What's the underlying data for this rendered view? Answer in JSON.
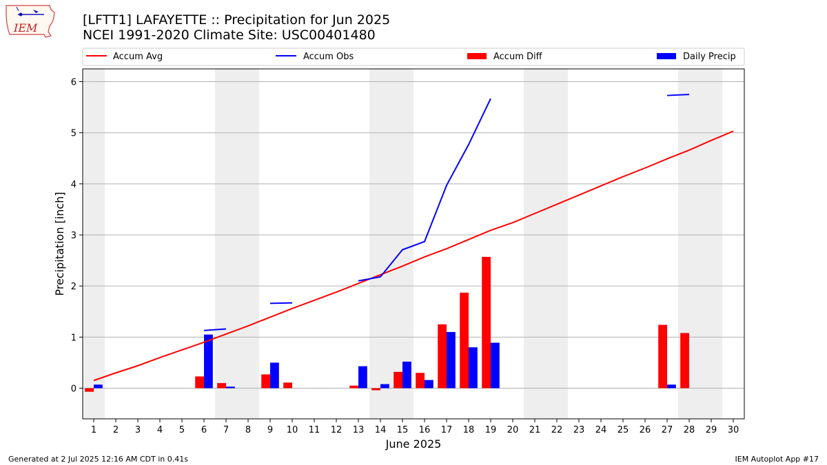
{
  "header": {
    "title_line1": "[LFTT1] LAFAYETTE :: Precipitation for Jun 2025",
    "title_line2": "NCEI 1991-2020 Climate Site: USC00401480",
    "logo_text": "IEM"
  },
  "footer": {
    "left": "Generated at 2 Jul 2025 12:16 AM CDT in 0.41s",
    "right": "IEM Autoplot App #17"
  },
  "colors": {
    "avg": "#ff0000",
    "obs": "#0000ff",
    "diff": "#ff0000",
    "daily": "#0000ff",
    "weekend": "#eeeeee",
    "grid": "#b0b0b0"
  },
  "chart_data": {
    "type": "bar",
    "title": "[LFTT1] LAFAYETTE :: Precipitation for Jun 2025",
    "subtitle": "NCEI 1991-2020 Climate Site: USC00401480",
    "xlabel": "June 2025",
    "ylabel": "Precipitation [inch]",
    "xlim": [
      0.5,
      30.5
    ],
    "ylim": [
      -0.6,
      6.25
    ],
    "yticks": [
      0,
      1,
      2,
      3,
      4,
      5,
      6
    ],
    "xticks": [
      1,
      2,
      3,
      4,
      5,
      6,
      7,
      8,
      9,
      10,
      11,
      12,
      13,
      14,
      15,
      16,
      17,
      18,
      19,
      20,
      21,
      22,
      23,
      24,
      25,
      26,
      27,
      28,
      29,
      30
    ],
    "grid": "horizontal",
    "shaded_days": [
      1,
      7,
      8,
      14,
      15,
      21,
      22,
      28,
      29
    ],
    "legend": {
      "placement": "top",
      "entries": [
        {
          "label": "Accum Avg",
          "kind": "line",
          "color": "#ff0000"
        },
        {
          "label": "Accum Obs",
          "kind": "line",
          "color": "#0000ff"
        },
        {
          "label": "Accum Diff",
          "kind": "bar",
          "color": "#ff0000"
        },
        {
          "label": "Daily Precip",
          "kind": "bar",
          "color": "#0000ff"
        }
      ]
    },
    "series": [
      {
        "name": "Accum Avg",
        "kind": "line",
        "color": "#ff0000",
        "x": [
          1,
          2,
          3,
          4,
          5,
          6,
          7,
          8,
          9,
          10,
          11,
          12,
          13,
          14,
          15,
          16,
          17,
          18,
          19,
          20,
          21,
          22,
          23,
          24,
          25,
          26,
          27,
          28,
          29,
          30
        ],
        "values": [
          0.15,
          0.3,
          0.44,
          0.6,
          0.75,
          0.9,
          1.06,
          1.22,
          1.39,
          1.56,
          1.72,
          1.88,
          2.05,
          2.22,
          2.39,
          2.57,
          2.73,
          2.91,
          3.09,
          3.24,
          3.42,
          3.6,
          3.78,
          3.96,
          4.14,
          4.31,
          4.49,
          4.66,
          4.85,
          5.03
        ]
      },
      {
        "name": "Accum Obs",
        "kind": "line",
        "color": "#0000ff",
        "segments": [
          {
            "x": [
              6,
              7
            ],
            "values": [
              1.13,
              1.16
            ]
          },
          {
            "x": [
              9,
              10
            ],
            "values": [
              1.66,
              1.67
            ]
          },
          {
            "x": [
              13,
              14,
              15,
              16,
              17,
              18,
              19
            ],
            "values": [
              2.1,
              2.18,
              2.71,
              2.87,
              3.97,
              4.77,
              5.67
            ]
          },
          {
            "x": [
              27,
              28
            ],
            "values": [
              5.73,
              5.75
            ]
          }
        ]
      },
      {
        "name": "Accum Diff",
        "kind": "bar",
        "color": "#ff0000",
        "x": [
          1,
          6,
          7,
          9,
          10,
          13,
          14,
          15,
          16,
          17,
          18,
          19,
          27,
          28
        ],
        "values": [
          -0.07,
          0.23,
          0.1,
          0.27,
          0.11,
          0.05,
          -0.04,
          0.32,
          0.3,
          1.25,
          1.87,
          2.57,
          1.24,
          1.08
        ]
      },
      {
        "name": "Daily Precip",
        "kind": "bar",
        "color": "#0000ff",
        "x": [
          1,
          6,
          7,
          9,
          13,
          14,
          15,
          16,
          17,
          18,
          19,
          27
        ],
        "values": [
          0.07,
          1.05,
          0.03,
          0.5,
          0.43,
          0.08,
          0.52,
          0.16,
          1.1,
          0.8,
          0.89,
          0.07
        ]
      }
    ]
  }
}
